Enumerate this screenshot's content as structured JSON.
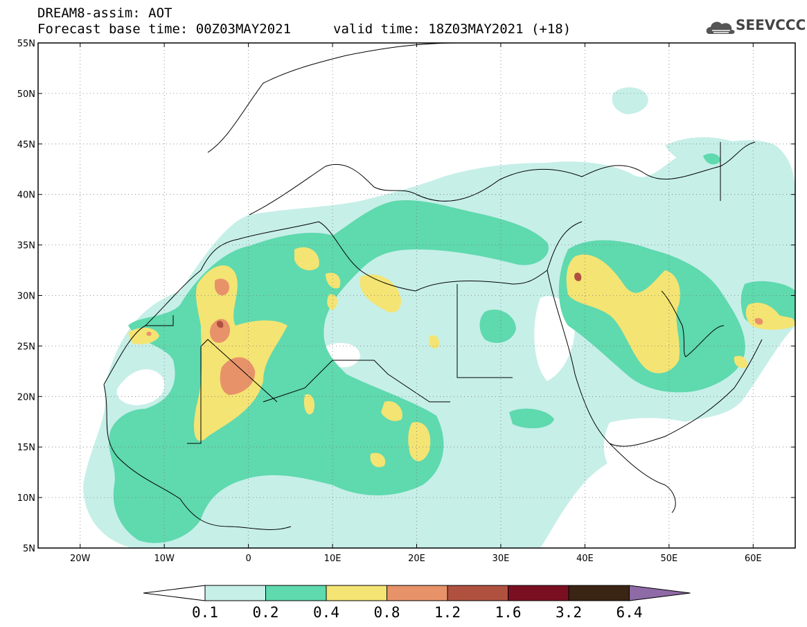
{
  "header": {
    "title": "DREAM8-assim: AOT",
    "base_time": "Forecast base time: 00Z03MAY2021",
    "valid_time": "valid time: 18Z03MAY2021 (+18)",
    "logo_text": "SEEVCCC",
    "logo_icon": "cloud-logo-icon"
  },
  "map": {
    "lon_range": [
      -25,
      65
    ],
    "lat_range": [
      5,
      55
    ],
    "lon_ticks": [
      {
        "v": -20,
        "label": "20W"
      },
      {
        "v": -10,
        "label": "10W"
      },
      {
        "v": 0,
        "label": "0"
      },
      {
        "v": 10,
        "label": "10E"
      },
      {
        "v": 20,
        "label": "20E"
      },
      {
        "v": 30,
        "label": "30E"
      },
      {
        "v": 40,
        "label": "40E"
      },
      {
        "v": 50,
        "label": "50E"
      },
      {
        "v": 60,
        "label": "60E"
      }
    ],
    "lat_ticks": [
      {
        "v": 5,
        "label": "5N"
      },
      {
        "v": 10,
        "label": "10N"
      },
      {
        "v": 15,
        "label": "15N"
      },
      {
        "v": 20,
        "label": "20N"
      },
      {
        "v": 25,
        "label": "25N"
      },
      {
        "v": 30,
        "label": "30N"
      },
      {
        "v": 35,
        "label": "35N"
      },
      {
        "v": 40,
        "label": "40N"
      },
      {
        "v": 45,
        "label": "45N"
      },
      {
        "v": 50,
        "label": "50N"
      },
      {
        "v": 55,
        "label": "55N"
      }
    ]
  },
  "colorbar": {
    "labels": [
      "0.1",
      "0.2",
      "0.4",
      "0.8",
      "1.2",
      "1.6",
      "3.2",
      "6.4"
    ],
    "colors": [
      "#c6efe8",
      "#5fd9ae",
      "#f4e473",
      "#e8926a",
      "#b05140",
      "#7a0f22",
      "#3a2414",
      "#8e6aa6"
    ]
  }
}
